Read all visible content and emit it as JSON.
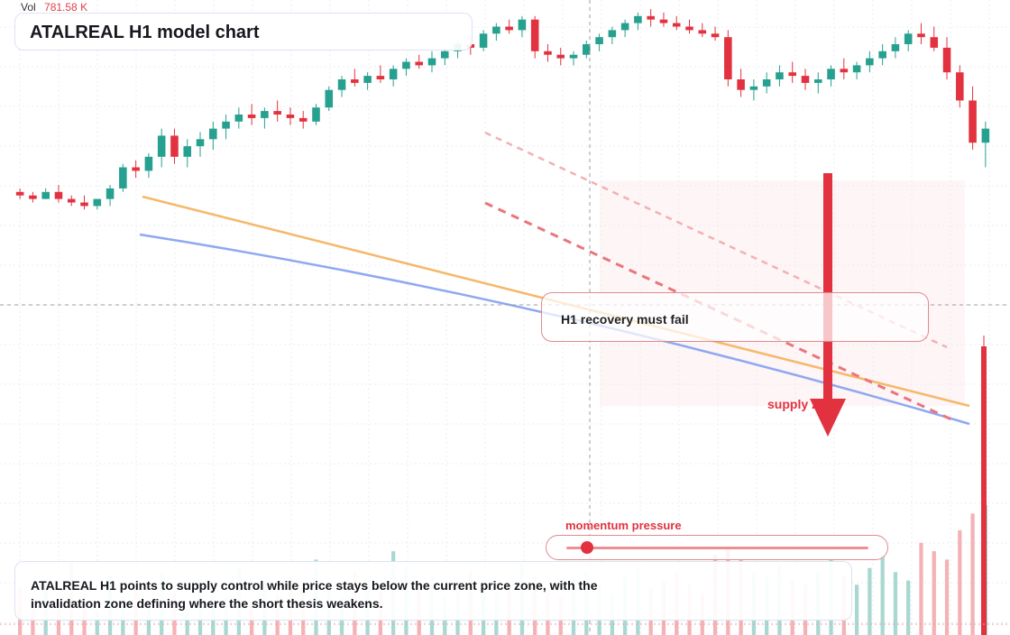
{
  "header": {
    "vol_label": "Vol",
    "vol_value": "781.58 K"
  },
  "title": "ATALREAL H1 model chart",
  "callout": "H1 recovery must fail",
  "zone_label": "supply zone",
  "momentum": {
    "label": "momentum pressure",
    "level": 0.07
  },
  "summary": "ATALREAL H1 points to supply control while price stays below the current price zone, with the invalidation zone defining where the short thesis weakens.",
  "colors": {
    "up": "#26a08f",
    "down": "#e2323f",
    "supply_zone": "#e2323f",
    "trendline_orange": "#f6b86a",
    "trendline_blue": "#8fa8f0"
  },
  "chart_data": {
    "type": "candlestick",
    "title": "ATALREAL H1 model chart",
    "annotations": [
      "H1 recovery must fail",
      "supply zone",
      "momentum pressure"
    ],
    "bearish_arrow": {
      "from": 186,
      "to": 36
    },
    "price_scale_note": "unlabeled price axis; values below are in relative chart units (0 = bottom, 100 = top of plot)",
    "ylim": [
      0,
      100
    ],
    "series": [
      {
        "name": "candles",
        "ohlc": [
          [
            48,
            49,
            46,
            47
          ],
          [
            47,
            48,
            45,
            46
          ],
          [
            46,
            49,
            46,
            48
          ],
          [
            48,
            50,
            45,
            46
          ],
          [
            46,
            47,
            44,
            45
          ],
          [
            45,
            47,
            43,
            44
          ],
          [
            44,
            46,
            43,
            46
          ],
          [
            46,
            50,
            44,
            49
          ],
          [
            49,
            56,
            48,
            55
          ],
          [
            55,
            57,
            52,
            54
          ],
          [
            54,
            59,
            52,
            58
          ],
          [
            58,
            66,
            55,
            64
          ],
          [
            64,
            66,
            56,
            58
          ],
          [
            58,
            63,
            55,
            61
          ],
          [
            61,
            65,
            58,
            63
          ],
          [
            63,
            68,
            60,
            66
          ],
          [
            66,
            70,
            63,
            68
          ],
          [
            68,
            72,
            66,
            70
          ],
          [
            70,
            73,
            67,
            69
          ],
          [
            69,
            72,
            66,
            71
          ],
          [
            71,
            74,
            68,
            70
          ],
          [
            70,
            72,
            67,
            69
          ],
          [
            69,
            71,
            66,
            68
          ],
          [
            68,
            73,
            67,
            72
          ],
          [
            72,
            78,
            71,
            77
          ],
          [
            77,
            81,
            75,
            80
          ],
          [
            80,
            83,
            78,
            79
          ],
          [
            79,
            82,
            77,
            81
          ],
          [
            81,
            84,
            79,
            80
          ],
          [
            80,
            84,
            78,
            83
          ],
          [
            83,
            86,
            81,
            85
          ],
          [
            85,
            87,
            83,
            84
          ],
          [
            84,
            88,
            82,
            86
          ],
          [
            86,
            89,
            84,
            88
          ],
          [
            88,
            91,
            86,
            90
          ],
          [
            90,
            92,
            87,
            89
          ],
          [
            89,
            94,
            88,
            93
          ],
          [
            93,
            96,
            91,
            95
          ],
          [
            95,
            97,
            93,
            94
          ],
          [
            94,
            98,
            92,
            97
          ],
          [
            97,
            98,
            86,
            88
          ],
          [
            88,
            90,
            85,
            87
          ],
          [
            87,
            89,
            84,
            86
          ],
          [
            86,
            88,
            84,
            87
          ],
          [
            87,
            91,
            86,
            90
          ],
          [
            90,
            93,
            88,
            92
          ],
          [
            92,
            95,
            90,
            94
          ],
          [
            94,
            97,
            92,
            96
          ],
          [
            96,
            99,
            94,
            98
          ],
          [
            98,
            100,
            95,
            97
          ],
          [
            97,
            99,
            95,
            96
          ],
          [
            96,
            98,
            94,
            95
          ],
          [
            95,
            97,
            93,
            94
          ],
          [
            94,
            96,
            92,
            93
          ],
          [
            93,
            95,
            91,
            92
          ],
          [
            92,
            94,
            78,
            80
          ],
          [
            80,
            83,
            75,
            77
          ],
          [
            77,
            80,
            74,
            78
          ],
          [
            78,
            82,
            76,
            80
          ],
          [
            80,
            84,
            78,
            82
          ],
          [
            82,
            85,
            79,
            81
          ],
          [
            81,
            83,
            77,
            79
          ],
          [
            79,
            82,
            76,
            80
          ],
          [
            80,
            84,
            78,
            83
          ],
          [
            83,
            86,
            80,
            82
          ],
          [
            82,
            85,
            80,
            84
          ],
          [
            84,
            88,
            82,
            86
          ],
          [
            86,
            90,
            84,
            88
          ],
          [
            88,
            92,
            86,
            90
          ],
          [
            90,
            94,
            88,
            93
          ],
          [
            93,
            96,
            90,
            92
          ],
          [
            92,
            95,
            88,
            89
          ],
          [
            89,
            92,
            80,
            82
          ],
          [
            82,
            84,
            72,
            74
          ],
          [
            74,
            78,
            60,
            62
          ],
          [
            62,
            68,
            55,
            66
          ]
        ]
      }
    ],
    "volume": [
      22,
      18,
      25,
      15,
      35,
      20,
      12,
      28,
      18,
      24,
      16,
      30,
      20,
      14,
      26,
      22,
      18,
      32,
      15,
      25,
      19,
      28,
      22,
      36,
      24,
      18,
      30,
      26,
      20,
      40,
      32,
      24,
      28,
      18,
      22,
      30,
      26,
      20,
      24,
      34,
      28,
      22,
      18,
      26,
      30,
      24,
      20,
      28,
      32,
      22,
      26,
      30,
      24,
      20,
      38,
      42,
      36,
      30,
      28,
      34,
      26,
      24,
      30,
      36,
      28,
      24,
      32,
      38,
      30,
      26,
      44,
      40,
      36,
      50,
      58,
      62
    ]
  }
}
